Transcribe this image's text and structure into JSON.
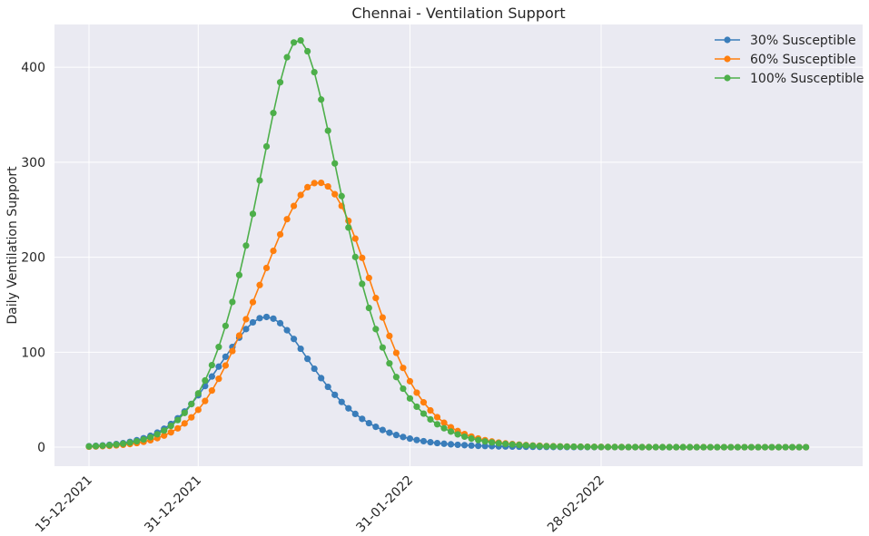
{
  "chart_data": {
    "type": "line",
    "title": "Chennai - Ventilation Support",
    "xlabel": "",
    "ylabel": "Daily Ventilation Support",
    "x_start": "2021-12-15",
    "x_tick_labels": [
      "15-12-2021",
      "31-12-2021",
      "31-01-2022",
      "28-02-2022"
    ],
    "y_ticks": [
      0,
      100,
      200,
      300,
      400
    ],
    "ylim": [
      -20,
      445
    ],
    "grid": true,
    "legend_position": "top-right",
    "series": [
      {
        "name": "30% Susceptible",
        "color": "#3a7dba",
        "values": [
          1,
          1.4,
          1.9,
          2.5,
          3.3,
          4.3,
          5.6,
          7.3,
          9.4,
          12,
          15.3,
          19.4,
          24.4,
          30.4,
          37.5,
          45.6,
          54.6,
          64.3,
          74.4,
          84.8,
          95.2,
          105.5,
          115.3,
          124.3,
          131.4,
          135.8,
          137.1,
          135.3,
          130.5,
          123.1,
          113.9,
          103.6,
          93,
          82.6,
          72.7,
          63.5,
          55.1,
          47.6,
          40.9,
          35,
          29.8,
          25.3,
          21.4,
          18.1,
          15.2,
          12.8,
          10.7,
          9,
          7.5,
          6.3,
          5.2,
          4.3,
          3.6,
          3,
          2.5,
          2.1,
          1.7,
          1.4,
          1.2,
          1,
          0.8,
          0.7,
          0.6,
          0.5,
          0.4,
          0.35,
          0.3,
          0.25,
          0.2,
          0.17,
          0.14,
          0.12,
          0.1,
          0.08,
          0.07,
          0.06,
          0.05,
          0.04,
          0.03,
          0.03,
          0.02,
          0.02,
          0.02,
          0.01,
          0.01,
          0.01,
          0.01,
          0.01,
          0.01,
          0.01,
          0.01,
          0.01,
          0.01,
          0.01,
          0.01,
          0.01,
          0.01,
          0.01,
          0.01,
          0.01,
          0.01,
          0.01,
          0.01,
          0.01,
          0.01,
          0.01
        ]
      },
      {
        "name": "60% Susceptible",
        "color": "#ff7f0e",
        "values": [
          0.5,
          0.7,
          1,
          1.4,
          1.9,
          2.5,
          3.3,
          4.3,
          5.6,
          7.3,
          9.5,
          12.2,
          15.6,
          19.8,
          25,
          31.4,
          39.3,
          48.6,
          59.6,
          72,
          86,
          101.2,
          117.5,
          134.7,
          152.7,
          170.7,
          188.7,
          206.7,
          224,
          240,
          254,
          265.5,
          273.7,
          278,
          278.3,
          274.5,
          266.3,
          254,
          238.3,
          219.6,
          199.3,
          178.2,
          157,
          136.5,
          117.1,
          99.3,
          83.4,
          69.4,
          57.4,
          47.2,
          38.7,
          31.6,
          25.7,
          20.9,
          17,
          13.8,
          11.2,
          9.1,
          7.4,
          6,
          4.9,
          4,
          3.3,
          2.7,
          2.2,
          1.8,
          1.5,
          1.2,
          1,
          0.8,
          0.7,
          0.6,
          0.5,
          0.4,
          0.33,
          0.27,
          0.22,
          0.18,
          0.15,
          0.12,
          0.1,
          0.08,
          0.07,
          0.06,
          0.05,
          0.04,
          0.03,
          0.03,
          0.02,
          0.02,
          0.02,
          0.01,
          0.01,
          0.01,
          0.01,
          0.01,
          0.01,
          0.01,
          0.01,
          0.01,
          0.01,
          0.01,
          0.01,
          0.01,
          0.01,
          0.01
        ]
      },
      {
        "name": "100% Susceptible",
        "color": "#4daf4a",
        "values": [
          0.8,
          1.1,
          1.5,
          2,
          2.7,
          3.6,
          4.7,
          6.2,
          8.1,
          10.5,
          13.6,
          17.5,
          22.4,
          28.5,
          36,
          45.3,
          56.6,
          70.2,
          86.4,
          105.5,
          127.7,
          152.9,
          181.2,
          212.2,
          245.6,
          280.8,
          316.6,
          351.8,
          384.2,
          410.5,
          426.1,
          428.2,
          416.8,
          394.8,
          366,
          333.2,
          298.7,
          264.3,
          231.2,
          200.2,
          171.9,
          146.6,
          124.3,
          104.9,
          88.2,
          73.8,
          61.6,
          51.3,
          42.6,
          35.3,
          29.2,
          24.1,
          19.9,
          16.4,
          13.5,
          11.1,
          9.1,
          7.5,
          6.1,
          5,
          4.1,
          3.4,
          2.8,
          2.3,
          1.9,
          1.5,
          1.2,
          1,
          0.8,
          0.7,
          0.6,
          0.5,
          0.4,
          0.32,
          0.26,
          0.21,
          0.17,
          0.14,
          0.11,
          0.09,
          0.07,
          0.06,
          0.05,
          0.04,
          0.03,
          0.03,
          0.02,
          0.02,
          0.02,
          0.01,
          0.01,
          0.01,
          0.01,
          0.01,
          0.01,
          0.01,
          0.01,
          0.01,
          0.01,
          0.01,
          0.01,
          0.01,
          0.01,
          0.01,
          0.01,
          0.01
        ]
      }
    ]
  }
}
